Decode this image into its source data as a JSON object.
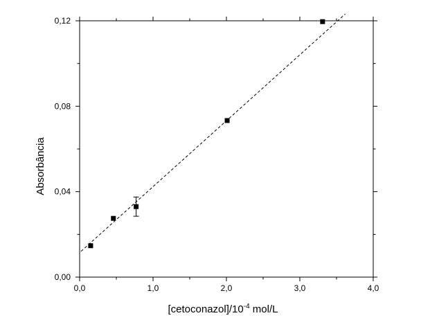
{
  "chart_data": {
    "type": "scatter",
    "title": "",
    "xlabel": {
      "prefix": "[cetoconazol]/10",
      "exponent": "-4",
      "suffix": " mol/L"
    },
    "ylabel": "Absorbância",
    "xlim": [
      0.0,
      4.0
    ],
    "ylim": [
      0.0,
      0.12
    ],
    "x_ticks": [
      {
        "value": 0.0,
        "label": "0,0"
      },
      {
        "value": 1.0,
        "label": "1,0"
      },
      {
        "value": 2.0,
        "label": "2,0"
      },
      {
        "value": 3.0,
        "label": "3,0"
      },
      {
        "value": 4.0,
        "label": "4,0"
      }
    ],
    "y_ticks": [
      {
        "value": 0.0,
        "label": "0,00"
      },
      {
        "value": 0.04,
        "label": "0,04"
      },
      {
        "value": 0.08,
        "label": "0,08"
      },
      {
        "value": 0.12,
        "label": "0,12"
      }
    ],
    "x_minor_step": 0.5,
    "y_minor_step": 0.02,
    "grid": false,
    "series": [
      {
        "points": [
          {
            "x": 0.15,
            "y": 0.0147
          },
          {
            "x": 0.46,
            "y": 0.0275
          },
          {
            "x": 0.77,
            "y": 0.033,
            "yerr": 0.0045
          },
          {
            "x": 2.01,
            "y": 0.0733
          },
          {
            "x": 3.31,
            "y": 0.1196
          }
        ],
        "marker": "square",
        "color": "#000000"
      }
    ],
    "fit_line": {
      "style": "dashed",
      "color": "#000000",
      "x": [
        0.02,
        3.62
      ],
      "y": [
        0.0121,
        0.1232
      ]
    }
  }
}
